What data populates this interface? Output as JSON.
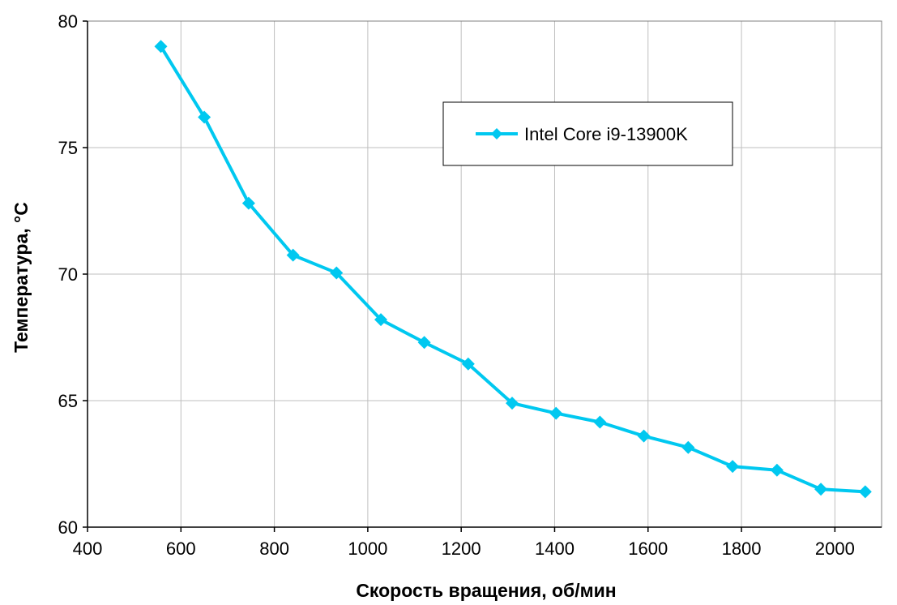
{
  "chart_data": {
    "type": "line",
    "xlabel": "Скорость вращения, об/мин",
    "ylabel": "Температура, °C",
    "xlim": [
      400,
      2100
    ],
    "ylim": [
      60,
      80
    ],
    "x_ticks": [
      400,
      600,
      800,
      1000,
      1200,
      1400,
      1600,
      1800,
      2000
    ],
    "y_ticks": [
      60,
      65,
      70,
      75,
      80
    ],
    "grid": true,
    "legend_position": "upper-center",
    "series": [
      {
        "name": "Intel Core i9-13900K",
        "color": "#00c8f0",
        "marker": "diamond",
        "x": [
          557,
          650,
          745,
          840,
          933,
          1028,
          1121,
          1215,
          1309,
          1403,
          1497,
          1591,
          1686,
          1781,
          1876,
          1970,
          2065
        ],
        "values": [
          79.0,
          76.2,
          72.8,
          70.75,
          70.05,
          68.2,
          67.3,
          66.45,
          64.9,
          64.5,
          64.15,
          63.6,
          63.15,
          62.4,
          62.25,
          61.5,
          61.4
        ]
      }
    ]
  }
}
